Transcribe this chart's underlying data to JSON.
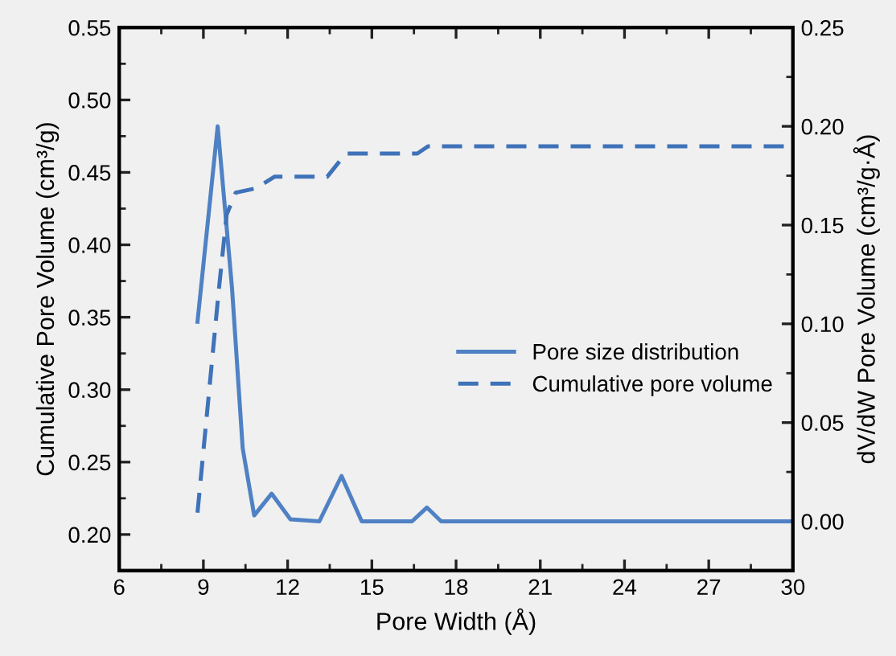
{
  "chart_data": {
    "type": "line",
    "xlabel": "Pore Width (Å)",
    "ylabel": "Cumulative Pore Volume (cm³/g)",
    "y2label": "dV/dW Pore Volume (cm³/g·Å)",
    "series": [
      {
        "name": "Pore size distribution",
        "color": "#4f81c4",
        "axis": "y2",
        "line_style": "solid",
        "x": [
          8.79,
          9.51,
          10.02,
          10.4,
          10.81,
          11.43,
          12.1,
          13.13,
          13.92,
          14.64,
          16.43,
          16.96,
          17.47,
          30
        ],
        "values": [
          0.101,
          0.2,
          0.118,
          0.037,
          0.003,
          0.014,
          0.001,
          0,
          0.023,
          0,
          0,
          0.007,
          0,
          0
        ]
      },
      {
        "name": "Cumulative pore volume",
        "color": "#3f72b8",
        "line_style": "dashed",
        "x": [
          8.79,
          9.55,
          9.83,
          10.15,
          10.87,
          11.53,
          13.41,
          14.07,
          16.62,
          17.0,
          30
        ],
        "values": [
          0.215,
          0.369,
          0.421,
          0.436,
          0.439,
          0.447,
          0.447,
          0.463,
          0.463,
          0.468,
          0.468
        ]
      }
    ],
    "xlim": [
      6,
      30
    ],
    "xticks": [
      6,
      9,
      12,
      15,
      18,
      21,
      24,
      27,
      30
    ],
    "ylim": [
      0.175,
      0.55
    ],
    "yticks": [
      {
        "value": 0.2,
        "label": "0.20"
      },
      {
        "value": 0.25,
        "label": "0.25"
      },
      {
        "value": 0.3,
        "label": "0.30"
      },
      {
        "value": 0.35,
        "label": "0.35"
      },
      {
        "value": 0.4,
        "label": "0.40"
      },
      {
        "value": 0.45,
        "label": "0.45"
      },
      {
        "value": 0.5,
        "label": "0.50"
      },
      {
        "value": 0.55,
        "label": "0.55"
      }
    ],
    "y2lim": [
      -0.025,
      0.25
    ],
    "y2ticks": [
      {
        "value": 0,
        "label": "0.00"
      },
      {
        "value": 0.05,
        "label": "0.05"
      },
      {
        "value": 0.1,
        "label": "0.10"
      },
      {
        "value": 0.15,
        "label": "0.15"
      },
      {
        "value": 0.2,
        "label": "0.20"
      },
      {
        "value": 0.25,
        "label": "0.25"
      }
    ],
    "legend": "center right",
    "grid": false
  }
}
